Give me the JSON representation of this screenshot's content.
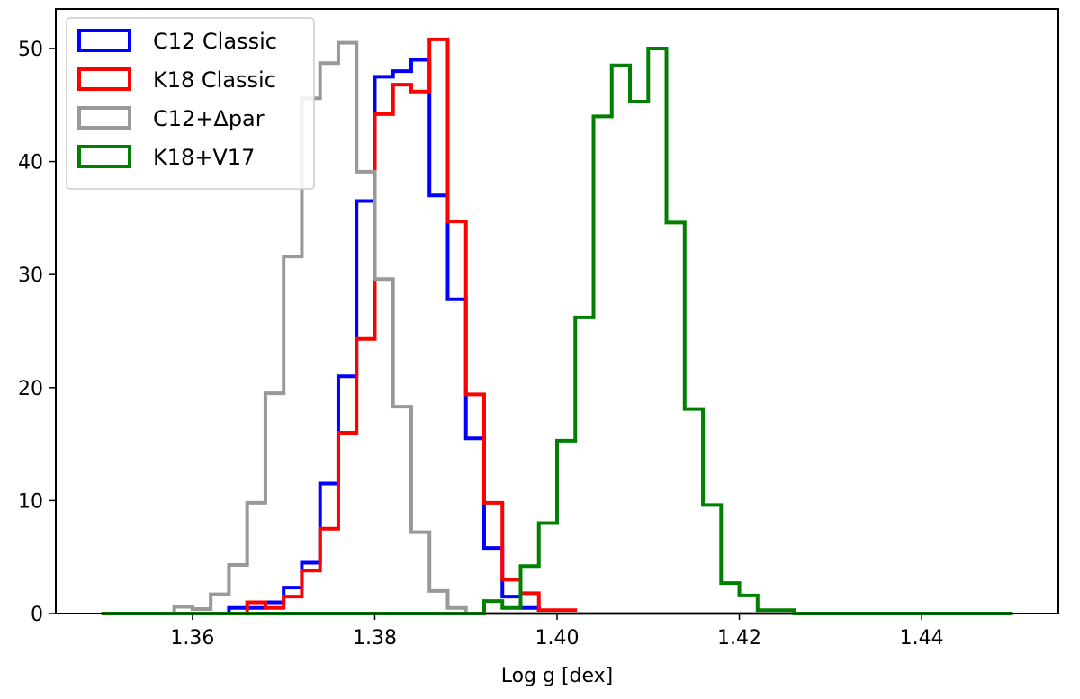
{
  "chart_data": {
    "type": "histogram",
    "xlabel": "Log g [dex]",
    "ylabel": "",
    "title": "",
    "xlim": [
      1.345,
      1.455
    ],
    "ylim": [
      0,
      53.5
    ],
    "xticks": [
      1.36,
      1.38,
      1.4,
      1.42,
      1.44
    ],
    "xtick_labels": [
      "1.36",
      "1.38",
      "1.40",
      "1.42",
      "1.44"
    ],
    "yticks": [
      0,
      10,
      20,
      30,
      40,
      50
    ],
    "ytick_labels": [
      "0",
      "10",
      "20",
      "30",
      "40",
      "50"
    ],
    "bin_edges": [
      1.35,
      1.352,
      1.354,
      1.356,
      1.358,
      1.36,
      1.362,
      1.364,
      1.366,
      1.368,
      1.37,
      1.372,
      1.374,
      1.376,
      1.378,
      1.38,
      1.382,
      1.384,
      1.386,
      1.388,
      1.39,
      1.392,
      1.394,
      1.396,
      1.398,
      1.4,
      1.402,
      1.404,
      1.406,
      1.408,
      1.41,
      1.412,
      1.414,
      1.416,
      1.418,
      1.42,
      1.422,
      1.424,
      1.426,
      1.428,
      1.43,
      1.432,
      1.434,
      1.436,
      1.438,
      1.44,
      1.442,
      1.444,
      1.446,
      1.448,
      1.45
    ],
    "legend_position": "top-left",
    "grid": false,
    "series": [
      {
        "name": "C12 Classic",
        "color": "#0000ff",
        "counts": [
          0,
          0,
          0,
          0,
          0,
          0,
          0,
          0.5,
          0.5,
          1.0,
          2.3,
          4.5,
          11.5,
          21.0,
          36.5,
          47.5,
          48.0,
          49.0,
          37.0,
          27.8,
          15.5,
          5.8,
          1.5,
          0.5,
          0,
          0,
          0,
          0,
          0,
          0,
          0,
          0,
          0,
          0,
          0,
          0,
          0,
          0,
          0,
          0,
          0,
          0,
          0,
          0,
          0,
          0,
          0,
          0,
          0,
          0
        ]
      },
      {
        "name": "K18 Classic",
        "color": "#ff0000",
        "counts": [
          0,
          0,
          0,
          0,
          0,
          0,
          0,
          0,
          1.0,
          0.5,
          1.5,
          3.8,
          7.5,
          16.0,
          24.3,
          44.2,
          46.8,
          46.2,
          50.8,
          34.7,
          19.4,
          9.8,
          3.0,
          1.8,
          0.3,
          0.3,
          0,
          0,
          0,
          0,
          0,
          0,
          0,
          0,
          0,
          0,
          0,
          0,
          0,
          0,
          0,
          0,
          0,
          0,
          0,
          0,
          0,
          0,
          0,
          0
        ]
      },
      {
        "name": "C12+Δpar",
        "color": "#999999",
        "counts": [
          0,
          0,
          0,
          0,
          0.6,
          0.4,
          1.7,
          4.3,
          9.8,
          19.5,
          31.6,
          45.6,
          48.7,
          50.5,
          39.1,
          29.6,
          18.3,
          7.2,
          2.0,
          0.5,
          0,
          0,
          0,
          0,
          0,
          0,
          0,
          0,
          0,
          0,
          0,
          0,
          0,
          0,
          0,
          0,
          0,
          0,
          0,
          0,
          0,
          0,
          0,
          0,
          0,
          0,
          0,
          0,
          0,
          0
        ]
      },
      {
        "name": "K18+V17",
        "color": "#008000",
        "counts": [
          0,
          0,
          0,
          0,
          0,
          0,
          0,
          0,
          0,
          0,
          0,
          0,
          0,
          0,
          0,
          0,
          0,
          0,
          0,
          0,
          0,
          1.1,
          0.5,
          4.2,
          8.0,
          15.3,
          26.2,
          44.0,
          48.5,
          45.3,
          50.0,
          34.6,
          18.1,
          9.6,
          2.7,
          1.6,
          0.3,
          0.3,
          0,
          0,
          0,
          0,
          0,
          0,
          0,
          0,
          0,
          0,
          0,
          0
        ]
      }
    ]
  }
}
